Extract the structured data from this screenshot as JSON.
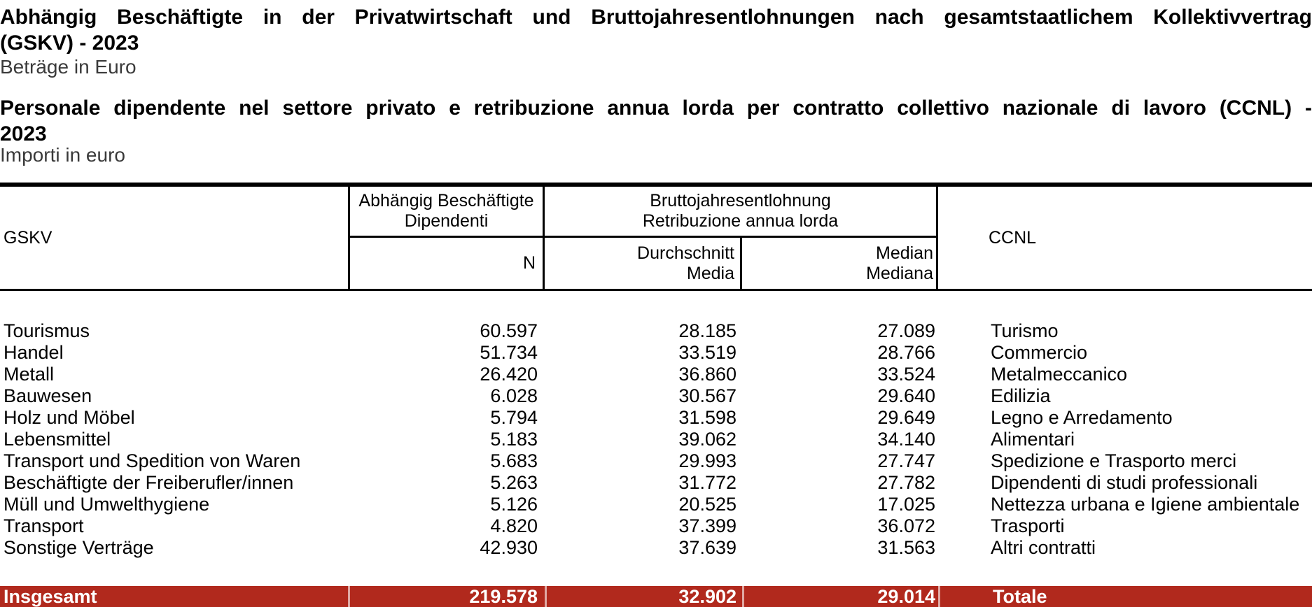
{
  "page": {
    "title_de": {
      "line1": "Abhängig Beschäftigte in der Privatwirtschaft und Bruttojahresentlohnungen nach gesamtstaatlichem Kollektivvertrag",
      "line2": "(GSKV) - 2023"
    },
    "subtitle_de": "Beträge in Euro",
    "title_it": {
      "line1": "Personale dipendente nel settore privato e retribuzione annua lorda per contratto collettivo nazionale di lavoro (CCNL) -",
      "line2": "2023"
    },
    "subtitle_it": "Importi in euro"
  },
  "table": {
    "header": {
      "gskv": "GSKV",
      "employees_de": "Abhängig Beschäftigte",
      "employees_it": "Dipendenti",
      "n": "N",
      "gross_de": "Bruttojahresentlohnung",
      "gross_it": "Retribuzione annua lorda",
      "mean_de": "Durchschnitt",
      "mean_it": "Media",
      "median_de": "Median",
      "median_it": "Mediana",
      "ccnl": "CCNL"
    },
    "rows": [
      {
        "gskv": "Tourismus",
        "n": "60.597",
        "mean": "28.185",
        "median": "27.089",
        "ccnl": "Turismo"
      },
      {
        "gskv": "Handel",
        "n": "51.734",
        "mean": "33.519",
        "median": "28.766",
        "ccnl": "Commercio"
      },
      {
        "gskv": "Metall",
        "n": "26.420",
        "mean": "36.860",
        "median": "33.524",
        "ccnl": "Metalmeccanico"
      },
      {
        "gskv": "Bauwesen",
        "n": "6.028",
        "mean": "30.567",
        "median": "29.640",
        "ccnl": "Edilizia"
      },
      {
        "gskv": "Holz und Möbel",
        "n": "5.794",
        "mean": "31.598",
        "median": "29.649",
        "ccnl": "Legno e Arredamento"
      },
      {
        "gskv": "Lebensmittel",
        "n": "5.183",
        "mean": "39.062",
        "median": "34.140",
        "ccnl": "Alimentari"
      },
      {
        "gskv": "Transport und Spedition von Waren",
        "n": "5.683",
        "mean": "29.993",
        "median": "27.747",
        "ccnl": "Spedizione e Trasporto merci"
      },
      {
        "gskv": "Beschäftigte der Freiberufler/innen",
        "n": "5.263",
        "mean": "31.772",
        "median": "27.782",
        "ccnl": "Dipendenti di studi professionali"
      },
      {
        "gskv": "Müll und Umwelthygiene",
        "n": "5.126",
        "mean": "20.525",
        "median": "17.025",
        "ccnl": "Nettezza urbana e Igiene ambientale"
      },
      {
        "gskv": "Transport",
        "n": "4.820",
        "mean": "37.399",
        "median": "36.072",
        "ccnl": "Trasporti"
      },
      {
        "gskv": "Sonstige Verträge",
        "n": "42.930",
        "mean": "37.639",
        "median": "31.563",
        "ccnl": "Altri contratti"
      }
    ],
    "total": {
      "gskv": "Insgesamt",
      "n": "219.578",
      "mean": "32.902",
      "median": "29.014",
      "ccnl": "Totale"
    },
    "colors": {
      "total_row_bg": "#B1291D",
      "total_row_text": "#FFFFFF",
      "rule_color": "#000000"
    }
  }
}
